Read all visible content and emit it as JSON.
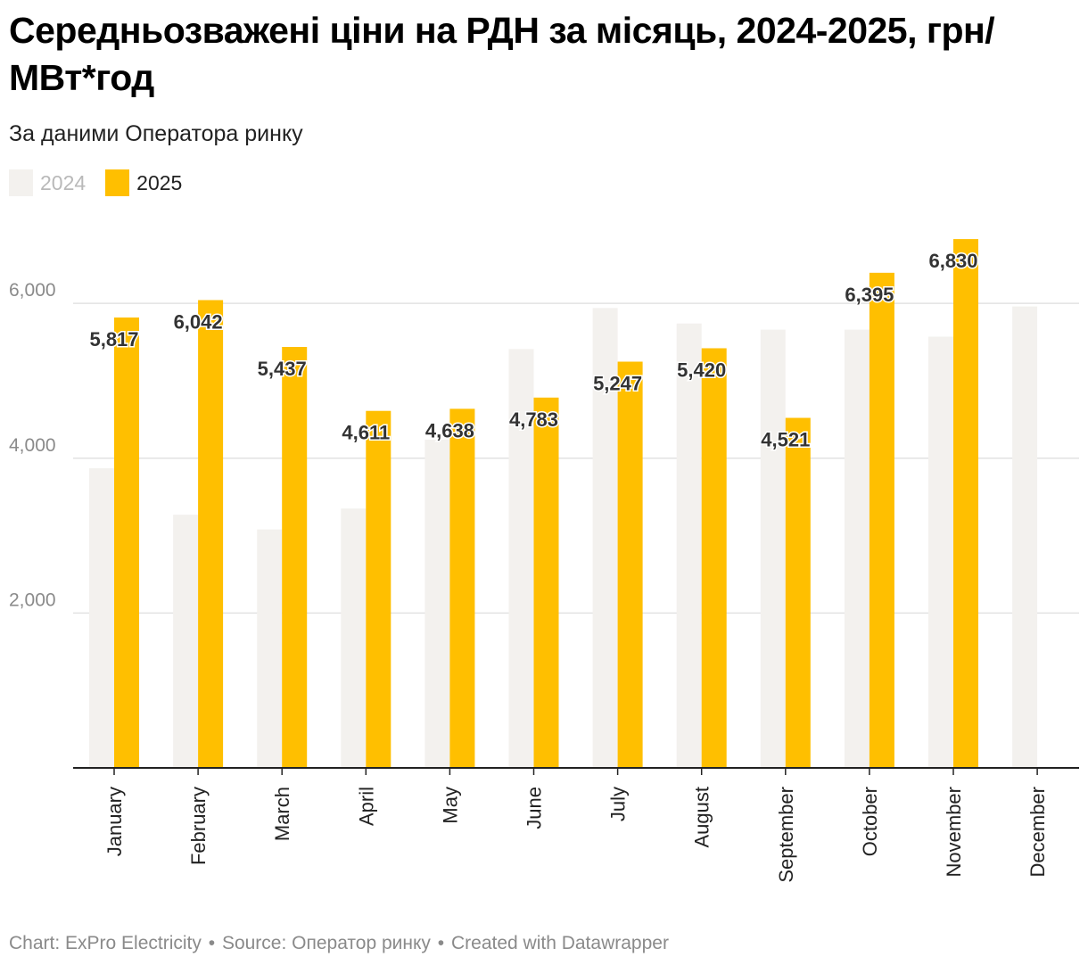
{
  "chart_data": {
    "type": "bar",
    "title": "Середньозважені ціни на РДН за місяць, 2024-2025, грн/МВт*год",
    "subtitle": "За даними Оператора ринку",
    "categories": [
      "January",
      "February",
      "March",
      "April",
      "May",
      "June",
      "July",
      "August",
      "September",
      "October",
      "November",
      "December"
    ],
    "series": [
      {
        "name": "2024",
        "color": "#f3f1ee",
        "values": [
          3870,
          3270,
          3080,
          3350,
          4240,
          5410,
          5940,
          5740,
          5660,
          5660,
          5570,
          5960
        ],
        "show_labels": false
      },
      {
        "name": "2025",
        "color": "#ffbf00",
        "values": [
          5817,
          6042,
          5437,
          4611,
          4638,
          4783,
          5247,
          5420,
          4521,
          6395,
          6830,
          null
        ],
        "show_labels": true
      }
    ],
    "ylim": [
      0,
      6900
    ],
    "yticks": [
      2000,
      4000,
      6000
    ],
    "ytick_labels": [
      "2,000",
      "4,000",
      "6,000"
    ],
    "grid": true,
    "legend_position": "top-left",
    "xlabel": "",
    "ylabel": ""
  },
  "legend": {
    "items": [
      {
        "label": "2024",
        "color": "#f3f1ee"
      },
      {
        "label": "2025",
        "color": "#ffbf00"
      }
    ]
  },
  "footer": {
    "chart_credit": "Chart: ExPro Electricity",
    "source": "Source: Оператор ринку",
    "created": "Created with Datawrapper",
    "separator": "•"
  },
  "colors": {
    "accent": "#ffbf00",
    "muted_bar": "#f3f1ee",
    "grid": "#e2e2e2",
    "axis": "#222222",
    "label_text": "#333333"
  }
}
